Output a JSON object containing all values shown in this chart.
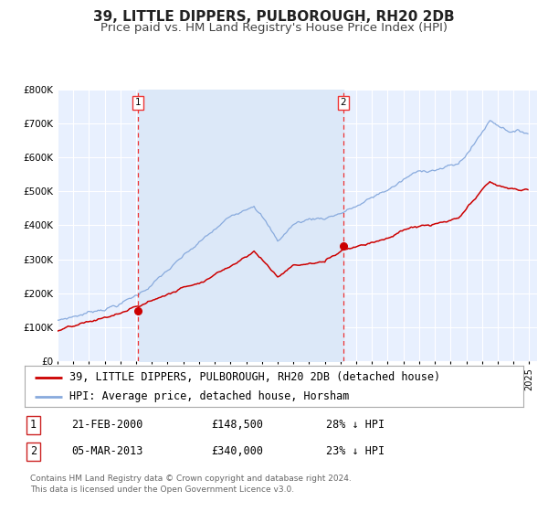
{
  "title": "39, LITTLE DIPPERS, PULBOROUGH, RH20 2DB",
  "subtitle": "Price paid vs. HM Land Registry's House Price Index (HPI)",
  "ylim": [
    0,
    800000
  ],
  "yticks": [
    0,
    100000,
    200000,
    300000,
    400000,
    500000,
    600000,
    700000,
    800000
  ],
  "ytick_labels": [
    "£0",
    "£100K",
    "£200K",
    "£300K",
    "£400K",
    "£500K",
    "£600K",
    "£700K",
    "£800K"
  ],
  "xlim_start": 1995.0,
  "xlim_end": 2025.5,
  "background_color": "#ffffff",
  "plot_bg_color": "#e8f0fe",
  "grid_color": "#ffffff",
  "red_line_color": "#cc0000",
  "blue_line_color": "#88aadd",
  "shade_color": "#dce8f8",
  "marker1_date": 2000.13,
  "marker1_value": 148500,
  "marker2_date": 2013.17,
  "marker2_value": 340000,
  "vline1_x": 2000.13,
  "vline2_x": 2013.17,
  "vline_color": "#ee3333",
  "legend_label_red": "39, LITTLE DIPPERS, PULBOROUGH, RH20 2DB (detached house)",
  "legend_label_blue": "HPI: Average price, detached house, Horsham",
  "table_row1": [
    "1",
    "21-FEB-2000",
    "£148,500",
    "28% ↓ HPI"
  ],
  "table_row2": [
    "2",
    "05-MAR-2013",
    "£340,000",
    "23% ↓ HPI"
  ],
  "footer_line1": "Contains HM Land Registry data © Crown copyright and database right 2024.",
  "footer_line2": "This data is licensed under the Open Government Licence v3.0.",
  "title_fontsize": 11,
  "subtitle_fontsize": 9.5,
  "tick_fontsize": 7.5,
  "legend_fontsize": 8.5,
  "table_fontsize": 8.5,
  "footer_fontsize": 6.5
}
